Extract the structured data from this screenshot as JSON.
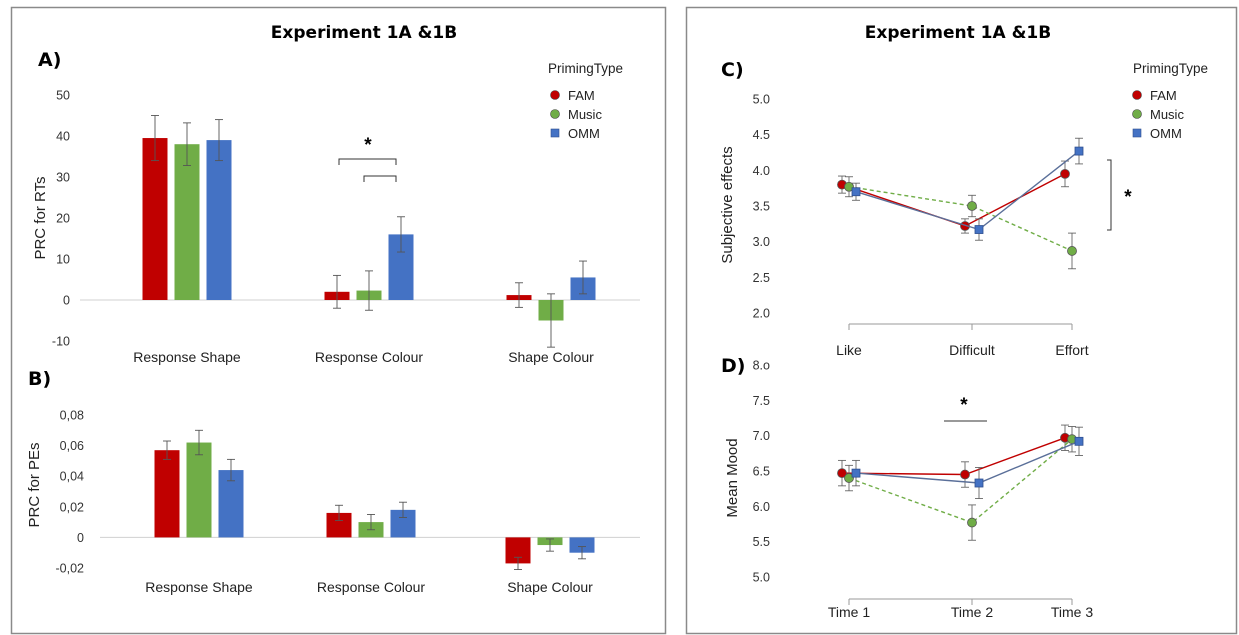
{
  "panels": {
    "left_title": "Experiment 1A &1B",
    "right_title": "Experiment 1A &1B",
    "legend_title": "PrimingType",
    "significance_mark": "*"
  },
  "colors": {
    "FAM": "#c00000",
    "Music": "#70ad47",
    "OMM": "#4472c4",
    "dashed_line": "#70ad47"
  },
  "chart_data": [
    {
      "panel": "A)",
      "type": "bar",
      "ylabel": "PRC for RTs",
      "categories": [
        "Response Shape",
        "Response Colour",
        "Shape Colour"
      ],
      "yticks": [
        "50",
        "40",
        "30",
        "20",
        "10",
        "0",
        "-10"
      ],
      "ylim": [
        -10,
        50
      ],
      "series": [
        {
          "name": "FAM",
          "values": [
            39.5,
            2,
            1.2
          ],
          "errors": [
            5.5,
            4,
            3
          ]
        },
        {
          "name": "Music",
          "values": [
            38,
            2.3,
            -5
          ],
          "errors": [
            5.2,
            4.8,
            6.5
          ]
        },
        {
          "name": "OMM",
          "values": [
            39,
            16,
            5.5
          ],
          "errors": [
            5,
            4.3,
            4
          ]
        }
      ],
      "annotations": [
        "*"
      ]
    },
    {
      "panel": "B)",
      "type": "bar",
      "ylabel": "PRC for PEs",
      "categories": [
        "Response Shape",
        "Response Colour",
        "Shape Colour"
      ],
      "yticks": [
        "0,08",
        "0,06",
        "0,04",
        "0,02",
        "0",
        "-0,02"
      ],
      "ylim": [
        -0.02,
        0.08
      ],
      "series": [
        {
          "name": "FAM",
          "values": [
            0.057,
            0.016,
            -0.017
          ],
          "errors": [
            0.006,
            0.005,
            0.004
          ]
        },
        {
          "name": "Music",
          "values": [
            0.062,
            0.01,
            -0.005
          ],
          "errors": [
            0.008,
            0.005,
            0.004
          ]
        },
        {
          "name": "OMM",
          "values": [
            0.044,
            0.018,
            -0.01
          ],
          "errors": [
            0.007,
            0.005,
            0.004
          ]
        }
      ]
    },
    {
      "panel": "C)",
      "type": "line",
      "ylabel": "Subjective effects",
      "categories": [
        "Like",
        "Difficult",
        "Effort"
      ],
      "yticks": [
        "5.0",
        "4.5",
        "4.0",
        "3.5",
        "3.0",
        "2.5",
        "2.0"
      ],
      "ylim": [
        2.0,
        5.0
      ],
      "series": [
        {
          "name": "FAM",
          "values": [
            3.8,
            3.22,
            3.95
          ],
          "errors": [
            0.12,
            0.1,
            0.18
          ]
        },
        {
          "name": "Music",
          "values": [
            3.77,
            3.5,
            2.87
          ],
          "errors": [
            0.14,
            0.15,
            0.25
          ]
        },
        {
          "name": "OMM",
          "values": [
            3.7,
            3.17,
            4.27
          ],
          "errors": [
            0.12,
            0.15,
            0.18
          ]
        }
      ],
      "annotations": [
        "*"
      ]
    },
    {
      "panel": "D)",
      "type": "line",
      "ylabel": "Mean Mood",
      "categories": [
        "Time 1",
        "Time 2",
        "Time 3"
      ],
      "yticks": [
        "8.ο",
        "7.5",
        "7.0",
        "6.5",
        "6.0",
        "5.5",
        "5.0"
      ],
      "ylim": [
        5.0,
        8.0
      ],
      "series": [
        {
          "name": "FAM",
          "values": [
            6.47,
            6.45,
            6.97
          ],
          "errors": [
            0.18,
            0.18,
            0.18
          ]
        },
        {
          "name": "Music",
          "values": [
            6.4,
            5.77,
            6.95
          ],
          "errors": [
            0.18,
            0.25,
            0.18
          ]
        },
        {
          "name": "OMM",
          "values": [
            6.47,
            6.33,
            6.92
          ],
          "errors": [
            0.18,
            0.22,
            0.2
          ]
        }
      ],
      "annotations": [
        "*"
      ]
    }
  ]
}
